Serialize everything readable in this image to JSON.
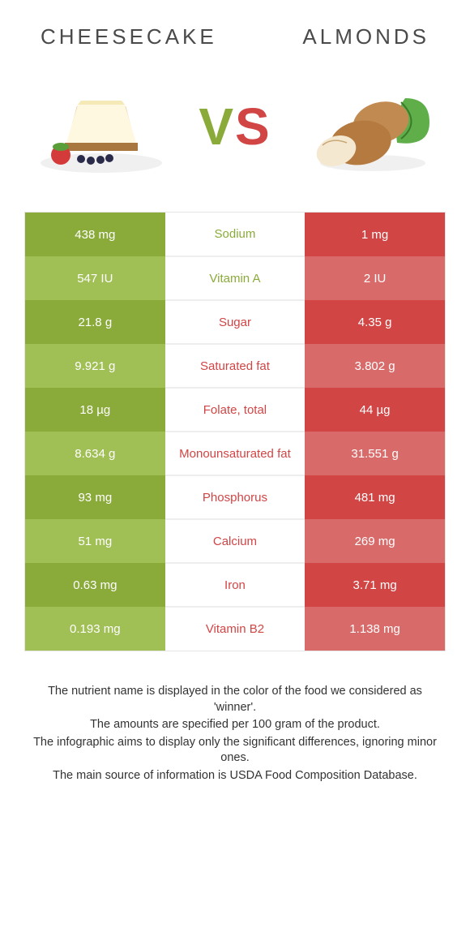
{
  "left": {
    "title": "CHEESECAKE",
    "color_dark": "#8aab3a",
    "color_light": "#a0bf55"
  },
  "right": {
    "title": "ALMONDS",
    "color_dark": "#d14545",
    "color_light": "#d96a6a"
  },
  "vs": {
    "v": "V",
    "s": "S"
  },
  "row_colors": {
    "left_colors": [
      "#8aab3a",
      "#a0bf55",
      "#8aab3a",
      "#a0bf55",
      "#8aab3a",
      "#a0bf55",
      "#8aab3a",
      "#a0bf55",
      "#8aab3a",
      "#a0bf55"
    ],
    "right_colors": [
      "#d14545",
      "#d96a6a",
      "#d14545",
      "#d96a6a",
      "#d14545",
      "#d96a6a",
      "#d14545",
      "#d96a6a",
      "#d14545",
      "#d96a6a"
    ]
  },
  "nutrients": [
    {
      "name": "Sodium",
      "left": "438 mg",
      "right": "1 mg",
      "winner": "left"
    },
    {
      "name": "Vitamin A",
      "left": "547 IU",
      "right": "2 IU",
      "winner": "left"
    },
    {
      "name": "Sugar",
      "left": "21.8 g",
      "right": "4.35 g",
      "winner": "right"
    },
    {
      "name": "Saturated fat",
      "left": "9.921 g",
      "right": "3.802 g",
      "winner": "right"
    },
    {
      "name": "Folate, total",
      "left": "18 µg",
      "right": "44 µg",
      "winner": "right"
    },
    {
      "name": "Monounsaturated fat",
      "left": "8.634 g",
      "right": "31.551 g",
      "winner": "right"
    },
    {
      "name": "Phosphorus",
      "left": "93 mg",
      "right": "481 mg",
      "winner": "right"
    },
    {
      "name": "Calcium",
      "left": "51 mg",
      "right": "269 mg",
      "winner": "right"
    },
    {
      "name": "Iron",
      "left": "0.63 mg",
      "right": "3.71 mg",
      "winner": "right"
    },
    {
      "name": "Vitamin B2",
      "left": "0.193 mg",
      "right": "1.138 mg",
      "winner": "right"
    }
  ],
  "notes": [
    "The nutrient name is displayed in the color of the food we considered as 'winner'.",
    "The amounts are specified per 100 gram of the product.",
    "The infographic aims to display only the significant differences, ignoring minor ones.",
    "The main source of information is USDA Food Composition Database."
  ]
}
